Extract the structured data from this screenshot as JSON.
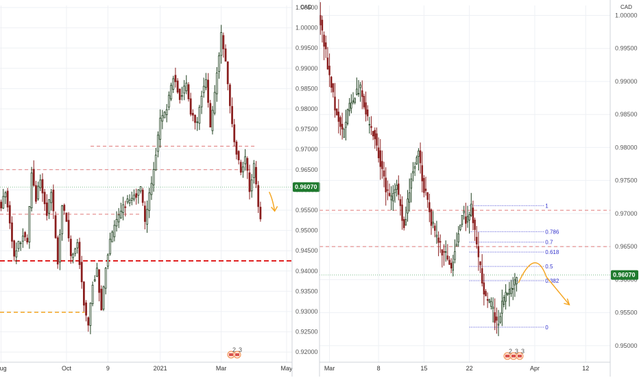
{
  "colors": {
    "up": "#1b3d1b",
    "down": "#8a1e1e",
    "grid": "#eef0f4",
    "axis": "#cfd3da",
    "dashed_red": "#e07a7a",
    "strong_red": "#e02020",
    "orange": "#f5a623",
    "fib": "#4b4bd6",
    "current_bg": "#1f7a2e",
    "current_line": "#7fbf8f"
  },
  "chart_data": [
    {
      "type": "candlestick",
      "name": "left-panel",
      "unit": "CAD",
      "xlabel": "",
      "ylabel": "",
      "ylim": [
        0.9175,
        1.0055
      ],
      "y_ticks": [
        "1.00500",
        "1.00000",
        "0.99500",
        "0.99000",
        "0.98500",
        "0.98000",
        "0.97500",
        "0.97000",
        "0.96500",
        "0.96000",
        "0.95500",
        "0.95000",
        "0.94500",
        "0.94000",
        "0.93500",
        "0.93000",
        "0.92500",
        "0.92000"
      ],
      "x_tick_labels": [
        "Aug",
        "Oct",
        "9",
        "2021",
        "Mar",
        "May"
      ],
      "x_tick_index": [
        0,
        30,
        49,
        73,
        101,
        131
      ],
      "current_price": "0.96070",
      "bars": 134,
      "price_path": [
        [
          0,
          0.956
        ],
        [
          2,
          0.96
        ],
        [
          6,
          0.944
        ],
        [
          10,
          0.949
        ],
        [
          12,
          0.947
        ],
        [
          14,
          0.965
        ],
        [
          16,
          0.958
        ],
        [
          18,
          0.963
        ],
        [
          21,
          0.954
        ],
        [
          23,
          0.96
        ],
        [
          26,
          0.942
        ],
        [
          28,
          0.956
        ],
        [
          30,
          0.953
        ],
        [
          32,
          0.943
        ],
        [
          35,
          0.947
        ],
        [
          38,
          0.932
        ],
        [
          40,
          0.926
        ],
        [
          42,
          0.937
        ],
        [
          44,
          0.94
        ],
        [
          46,
          0.931
        ],
        [
          48,
          0.941
        ],
        [
          50,
          0.947
        ],
        [
          52,
          0.951
        ],
        [
          56,
          0.956
        ],
        [
          60,
          0.958
        ],
        [
          64,
          0.96
        ],
        [
          66,
          0.952
        ],
        [
          70,
          0.965
        ],
        [
          73,
          0.977
        ],
        [
          76,
          0.98
        ],
        [
          79,
          0.988
        ],
        [
          82,
          0.983
        ],
        [
          85,
          0.986
        ],
        [
          87,
          0.979
        ],
        [
          90,
          0.976
        ],
        [
          92,
          0.984
        ],
        [
          94,
          0.987
        ],
        [
          96,
          0.975
        ],
        [
          98,
          0.984
        ],
        [
          101,
          0.998
        ],
        [
          103,
          0.992
        ],
        [
          105,
          0.981
        ],
        [
          107,
          0.972
        ],
        [
          110,
          0.965
        ],
        [
          112,
          0.968
        ],
        [
          114,
          0.96
        ],
        [
          116,
          0.966
        ],
        [
          118,
          0.956
        ],
        [
          119,
          0.953
        ]
      ],
      "lines": [
        {
          "y": 0.9708,
          "from": 0.31,
          "to": 0.88,
          "style": "dashed-red"
        },
        {
          "y": 0.965,
          "from": 0.0,
          "to": 0.88,
          "style": "dashed-red"
        },
        {
          "y": 0.954,
          "from": 0.0,
          "to": 0.48,
          "style": "dashed-red"
        },
        {
          "y": 0.9425,
          "from": 0.0,
          "to": 1.0,
          "style": "strong-red"
        },
        {
          "y": 0.9298,
          "from": 0.0,
          "to": 0.29,
          "style": "orange"
        }
      ]
    },
    {
      "type": "candlestick",
      "name": "right-panel",
      "unit": "CAD",
      "xlabel": "",
      "ylabel": "",
      "ylim": [
        0.9475,
        1.0015
      ],
      "y_ticks": [
        "1.00000",
        "0.99500",
        "0.99000",
        "0.98500",
        "0.98000",
        "0.97500",
        "0.97000",
        "0.96500",
        "0.96000",
        "0.95500",
        "0.95000"
      ],
      "x_tick_labels": [
        "Mar",
        "8",
        "15",
        "22",
        "Apr",
        "12"
      ],
      "x_tick_index": [
        5,
        32,
        57,
        82,
        118,
        146
      ],
      "current_price": "0.96070",
      "bars": 160,
      "price_path": [
        [
          0,
          0.999
        ],
        [
          8,
          0.986
        ],
        [
          12,
          0.982
        ],
        [
          16,
          0.986
        ],
        [
          22,
          0.989
        ],
        [
          26,
          0.984
        ],
        [
          30,
          0.982
        ],
        [
          34,
          0.976
        ],
        [
          38,
          0.972
        ],
        [
          42,
          0.974
        ],
        [
          46,
          0.968
        ],
        [
          50,
          0.976
        ],
        [
          54,
          0.979
        ],
        [
          57,
          0.974
        ],
        [
          60,
          0.97
        ],
        [
          64,
          0.966
        ],
        [
          68,
          0.964
        ],
        [
          72,
          0.962
        ],
        [
          75,
          0.966
        ],
        [
          78,
          0.97
        ],
        [
          81,
          0.969
        ],
        [
          83,
          0.971
        ],
        [
          86,
          0.965
        ],
        [
          90,
          0.958
        ],
        [
          94,
          0.956
        ],
        [
          97,
          0.953
        ],
        [
          100,
          0.956
        ],
        [
          103,
          0.958
        ],
        [
          106,
          0.959
        ],
        [
          108,
          0.9608
        ]
      ],
      "lines": [
        {
          "y": 0.9705,
          "from": 0.0,
          "to": 1.0,
          "style": "dashed-red"
        },
        {
          "y": 0.965,
          "from": 0.0,
          "to": 1.0,
          "style": "dashed-red"
        }
      ],
      "fibonacci": {
        "high": 0.9712,
        "low": 0.9528,
        "levels": [
          {
            "value": 1,
            "label": "1"
          },
          {
            "value": 0.786,
            "label": "0.786"
          },
          {
            "value": 0.7,
            "label": "0.7"
          },
          {
            "value": 0.618,
            "label": "0.618"
          },
          {
            "value": 0.5,
            "label": "0.5"
          },
          {
            "value": 0.382,
            "label": "0.382"
          },
          {
            "value": 0,
            "label": "0"
          }
        ]
      },
      "projection": [
        [
          0.9595,
          0
        ],
        [
          0.962,
          0.33
        ],
        [
          0.9604,
          0.55
        ],
        [
          0.9562,
          1
        ]
      ]
    }
  ],
  "markers": {
    "left_events": [
      {
        "icon": "flag-icon",
        "count": "2"
      },
      {
        "icon": "flag-icon",
        "count": "3"
      }
    ],
    "right_events": [
      {
        "icon": "flag-icon",
        "count": "2"
      },
      {
        "icon": "flag-icon",
        "count": "3"
      },
      {
        "icon": "flag-icon",
        "count": "3"
      }
    ]
  }
}
